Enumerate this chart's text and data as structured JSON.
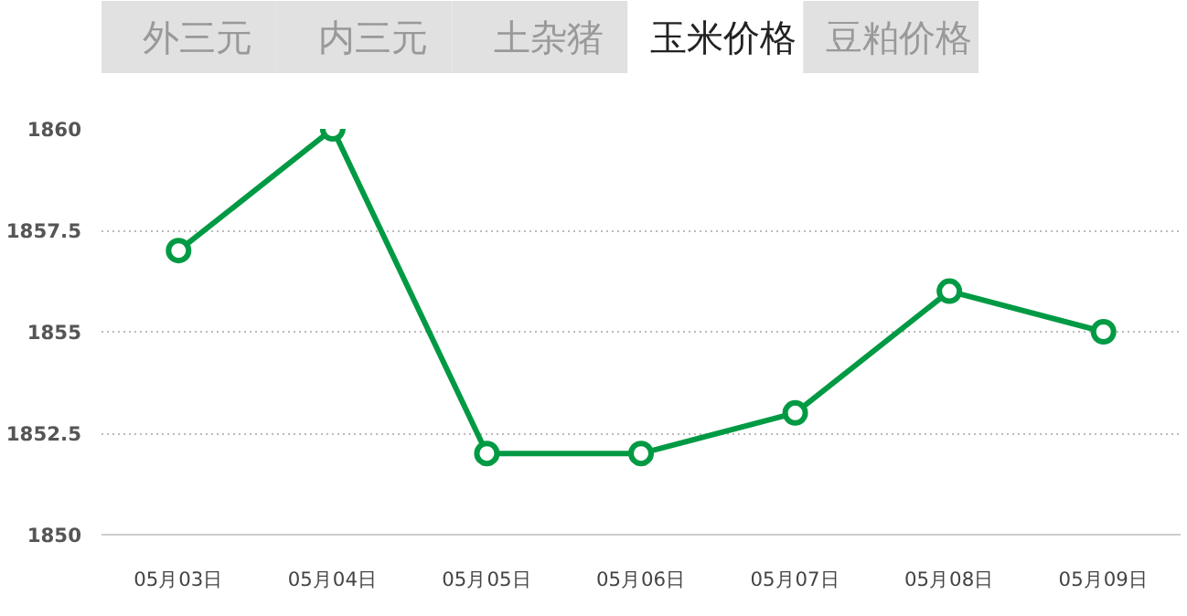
{
  "chart_data": {
    "type": "line",
    "title": "玉米价格",
    "annotations": [
      "外三元",
      "内三元",
      "土杂猪",
      "豆粕价格"
    ],
    "categories": [
      "05月03日",
      "05月04日",
      "05月05日",
      "05月06日",
      "05月07日",
      "05月08日",
      "05月09日"
    ],
    "series": [
      {
        "color": "#009a44",
        "values": [
          1857,
          1860,
          1852,
          1852,
          1853,
          1856,
          1855
        ]
      }
    ],
    "ylim": [
      1850,
      1860
    ],
    "yticks": [
      1850,
      1852.5,
      1855,
      1857.5,
      1860
    ],
    "grid": "y",
    "marker": "circle",
    "line_style": "solid"
  }
}
